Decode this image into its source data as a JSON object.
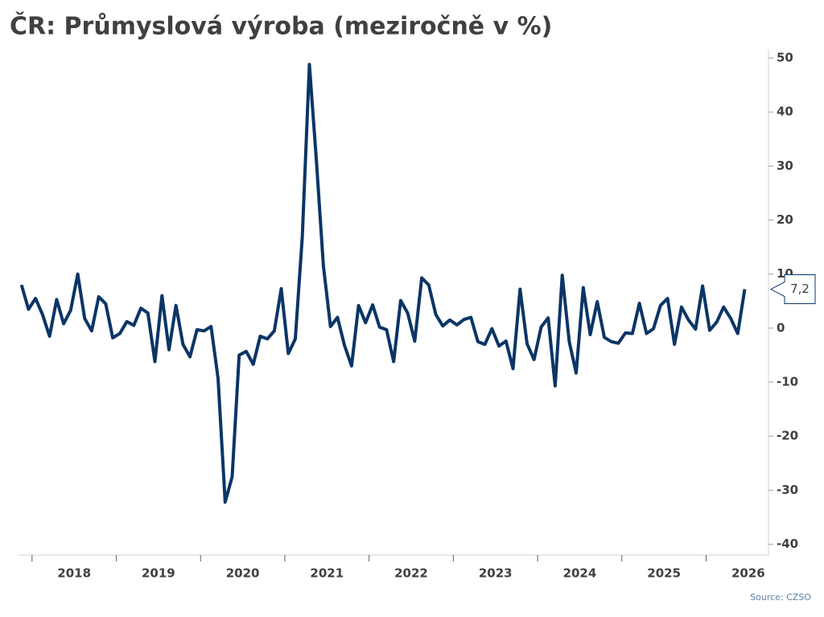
{
  "chart_data": {
    "type": "line",
    "title": "ČR: Průmyslová výroba (meziročně v %)",
    "source": "Source: CZSO",
    "x": [
      2017.875,
      2017.958,
      2018.042,
      2018.125,
      2018.208,
      2018.292,
      2018.375,
      2018.458,
      2018.542,
      2018.625,
      2018.708,
      2018.792,
      2018.875,
      2018.958,
      2019.042,
      2019.125,
      2019.208,
      2019.292,
      2019.375,
      2019.458,
      2019.542,
      2019.625,
      2019.708,
      2019.792,
      2019.875,
      2019.958,
      2020.042,
      2020.125,
      2020.208,
      2020.292,
      2020.375,
      2020.458,
      2020.542,
      2020.625,
      2020.708,
      2020.792,
      2020.875,
      2020.958,
      2021.042,
      2021.125,
      2021.208,
      2021.292,
      2021.375,
      2021.458,
      2021.542,
      2021.625,
      2021.708,
      2021.792,
      2021.875,
      2021.958,
      2022.042,
      2022.125,
      2022.208,
      2022.292,
      2022.375,
      2022.458,
      2022.542,
      2022.625,
      2022.708,
      2022.792,
      2022.875,
      2022.958,
      2023.042,
      2023.125,
      2023.208,
      2023.292,
      2023.375,
      2023.458,
      2023.542,
      2023.625,
      2023.708,
      2023.792,
      2023.875,
      2023.958,
      2024.042,
      2024.125,
      2024.208,
      2024.292,
      2024.375,
      2024.458,
      2024.542,
      2024.625,
      2024.708,
      2024.792,
      2024.875,
      2024.958,
      2025.042,
      2025.125,
      2025.208,
      2025.292,
      2025.375,
      2025.458,
      2025.542,
      2025.625,
      2025.708,
      2025.792,
      2025.875,
      2025.958,
      2026.042,
      2026.125,
      2026.208,
      2026.292,
      2026.375,
      2026.458
    ],
    "series": [
      {
        "color": "#0b3566",
        "values": [
          8,
          3.5,
          5.5,
          2.5,
          -1.5,
          5.3,
          0.8,
          3.3,
          10,
          1.8,
          -0.5,
          5.8,
          4.5,
          -1.8,
          -1,
          1.2,
          0.5,
          3.7,
          2.8,
          -6.2,
          6,
          -4,
          4.2,
          -3,
          -5.3,
          -0.3,
          -0.5,
          0.3,
          -9.3,
          -32.2,
          -27.5,
          -5,
          -4.3,
          -6.7,
          -1.5,
          -2,
          -0.5,
          7.3,
          -4.7,
          -2,
          17,
          48.8,
          31,
          11.5,
          0.3,
          2,
          -3.2,
          -7,
          4.2,
          1,
          4.3,
          0.2,
          -0.3,
          -6.2,
          5.1,
          2.8,
          -2.4,
          9.3,
          8,
          2.5,
          0.4,
          1.5,
          0.6,
          1.6,
          2,
          -2.5,
          -3,
          -0.1,
          -3.3,
          -2.4,
          -7.5,
          7.2,
          -2.9,
          -5.8,
          0.2,
          1.9,
          -10.7,
          9.8,
          -2.5,
          -8.3,
          7.5,
          -1.2,
          4.9,
          -1.7,
          -2.5,
          -2.8,
          -0.9,
          -1,
          4.6,
          -1,
          -0.1,
          4.2,
          5.5,
          -3,
          3.9,
          1.5,
          -0.2,
          7.8,
          -0.4,
          1.1,
          3.9,
          1.8,
          -1,
          7.2
        ],
        "value_labels": [
          null,
          null,
          null,
          null,
          null,
          null,
          null,
          null,
          null,
          null,
          null,
          null,
          null,
          null,
          null,
          null,
          null,
          null,
          null,
          null,
          null,
          null,
          null,
          null,
          null,
          null,
          null,
          null,
          null,
          null,
          null,
          null,
          null,
          null,
          null,
          null,
          null,
          null,
          null,
          null,
          null,
          null,
          null,
          null,
          null,
          null,
          null,
          null,
          null,
          null,
          null,
          null,
          null,
          null,
          null,
          null,
          null,
          null,
          null,
          null,
          null,
          null,
          null,
          null,
          null,
          null,
          null,
          null,
          null,
          null,
          null,
          null,
          null,
          null,
          null,
          null,
          null,
          null,
          null,
          null,
          null,
          null,
          null,
          null,
          null,
          null,
          null,
          null,
          null,
          null,
          null,
          null,
          null,
          null,
          null,
          null,
          null,
          null,
          null,
          null,
          null,
          null,
          null,
          "7,2"
        ]
      }
    ],
    "xlim": [
      2017.83,
      2026.74
    ],
    "xticks": [
      2018,
      2019,
      2020,
      2021,
      2022,
      2023,
      2024,
      2025,
      2026
    ],
    "ylim": [
      -42,
      51.5
    ],
    "yticks": [
      -40,
      -30,
      -20,
      -10,
      0,
      10,
      20,
      30,
      40,
      50
    ],
    "grid": false
  }
}
